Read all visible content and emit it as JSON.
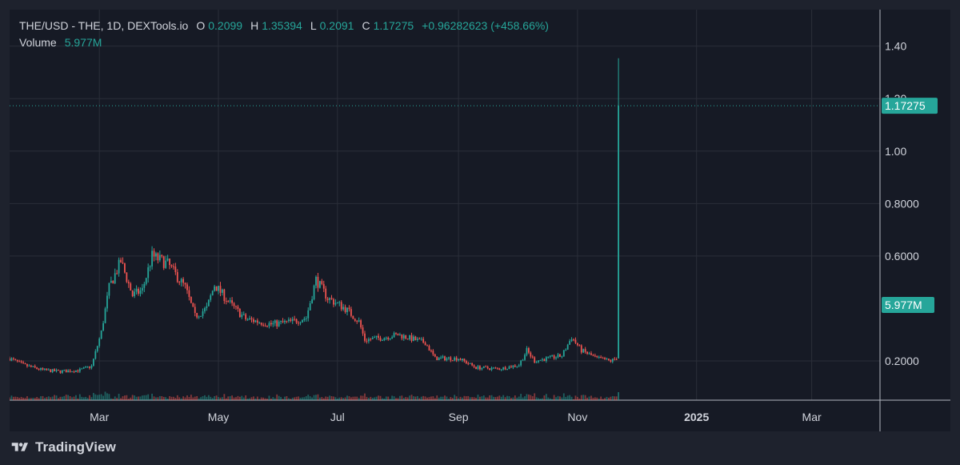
{
  "legend": {
    "symbol": "THE/USD - THE, 1D, DEXTools.io",
    "open_label": "O",
    "open": "0.2099",
    "high_label": "H",
    "high": "1.35394",
    "low_label": "L",
    "low": "0.2091",
    "close_label": "C",
    "close": "1.17275",
    "change": "+0.96282623 (+458.66%)",
    "volume_label": "Volume",
    "volume": "5.977M"
  },
  "footer": {
    "brand": "TradingView",
    "logo_icon": "tradingview-logo-icon"
  },
  "colors": {
    "up": "#26a69a",
    "down": "#ef5350",
    "grid": "#2a2e39",
    "axis_text": "#d1d4dc",
    "bg": "#161a25",
    "page": "#1e222d"
  },
  "chart_data": {
    "type": "candlestick",
    "title": "THE/USD - THE, 1D, DEXTools.io",
    "y_tick_labels": [
      "1.40",
      "1.20",
      "1.00",
      "0.8000",
      "0.6000",
      "0.2000"
    ],
    "x_tick_labels": [
      "Mar",
      "May",
      "Jul",
      "Sep",
      "Nov",
      "2025",
      "Mar"
    ],
    "price_label": "1.17275",
    "volume_label": "5.977M",
    "series": [
      {
        "name": "THE/USD",
        "points": [
          [
            "2024-01-15",
            0.21
          ],
          [
            "2024-01-22",
            0.185
          ],
          [
            "2024-02-01",
            0.165
          ],
          [
            "2024-02-10",
            0.16
          ],
          [
            "2024-02-20",
            0.165
          ],
          [
            "2024-02-26",
            0.18
          ],
          [
            "2024-03-02",
            0.31
          ],
          [
            "2024-03-06",
            0.48
          ],
          [
            "2024-03-12",
            0.58
          ],
          [
            "2024-03-18",
            0.45
          ],
          [
            "2024-03-23",
            0.47
          ],
          [
            "2024-03-28",
            0.6
          ],
          [
            "2024-04-05",
            0.57
          ],
          [
            "2024-04-14",
            0.48
          ],
          [
            "2024-04-19",
            0.37
          ],
          [
            "2024-04-25",
            0.4
          ],
          [
            "2024-04-29",
            0.49
          ],
          [
            "2024-05-08",
            0.41
          ],
          [
            "2024-05-15",
            0.36
          ],
          [
            "2024-05-28",
            0.34
          ],
          [
            "2024-06-08",
            0.35
          ],
          [
            "2024-06-15",
            0.365
          ],
          [
            "2024-06-20",
            0.51
          ],
          [
            "2024-06-26",
            0.44
          ],
          [
            "2024-07-05",
            0.4
          ],
          [
            "2024-07-12",
            0.35
          ],
          [
            "2024-07-15",
            0.28
          ],
          [
            "2024-07-25",
            0.29
          ],
          [
            "2024-08-01",
            0.3
          ],
          [
            "2024-08-15",
            0.27
          ],
          [
            "2024-08-20",
            0.21
          ],
          [
            "2024-09-01",
            0.21
          ],
          [
            "2024-09-10",
            0.175
          ],
          [
            "2024-09-22",
            0.17
          ],
          [
            "2024-10-02",
            0.185
          ],
          [
            "2024-10-06",
            0.24
          ],
          [
            "2024-10-10",
            0.2
          ],
          [
            "2024-10-24",
            0.22
          ],
          [
            "2024-10-29",
            0.29
          ],
          [
            "2024-11-03",
            0.24
          ],
          [
            "2024-11-11",
            0.21
          ],
          [
            "2024-11-18",
            0.2
          ],
          [
            "2024-11-21",
            0.2099
          ],
          [
            "2024-11-22",
            1.17275
          ]
        ]
      }
    ],
    "last_candle": {
      "date": "2024-11-22",
      "open": 0.2099,
      "high": 1.35394,
      "low": 0.2091,
      "close": 1.17275
    },
    "y_range": [
      0.02,
      1.46
    ],
    "grid": true
  }
}
